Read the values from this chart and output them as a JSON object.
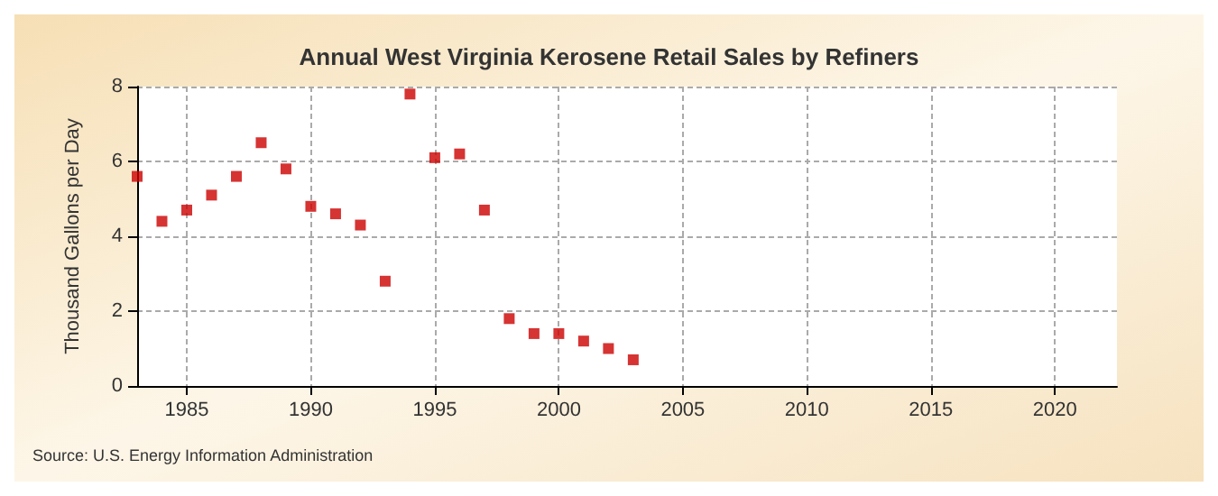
{
  "chart_data": {
    "type": "scatter",
    "title": "Annual West Virginia Kerosene Retail Sales by Refiners",
    "ylabel": "Thousand Gallons per Day",
    "annotations": [
      "Source: U.S. Energy Information Administration"
    ],
    "x": [
      1983,
      1984,
      1985,
      1986,
      1987,
      1988,
      1989,
      1990,
      1991,
      1992,
      1993,
      1994,
      1995,
      1996,
      1997,
      1998,
      1999,
      2000,
      2001,
      2002,
      2003
    ],
    "series": [
      {
        "color": "#cc0000",
        "values": [
          5.6,
          4.4,
          4.7,
          5.1,
          5.6,
          6.5,
          5.8,
          4.8,
          4.6,
          4.3,
          2.8,
          7.8,
          6.1,
          6.2,
          4.7,
          1.8,
          1.4,
          1.4,
          1.2,
          1.0,
          0.7
        ]
      }
    ],
    "xlim": [
      1983,
      2022.5
    ],
    "xticks": [
      1985,
      1990,
      1995,
      2000,
      2005,
      2010,
      2015,
      2020
    ],
    "ylim": [
      0,
      8
    ],
    "yticks": [
      0,
      2,
      4,
      6,
      8
    ],
    "grid": true,
    "marker": "square"
  }
}
